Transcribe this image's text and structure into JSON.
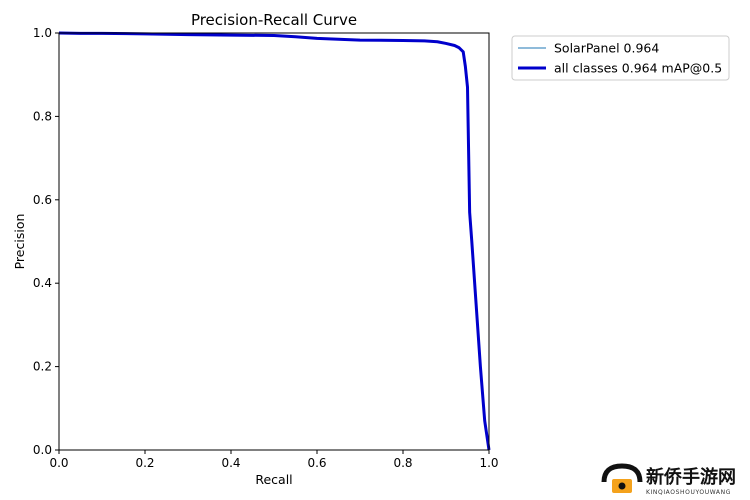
{
  "chart_data": {
    "type": "line",
    "title": "Precision-Recall Curve",
    "xlabel": "Recall",
    "ylabel": "Precision",
    "xlim": [
      0,
      1
    ],
    "ylim": [
      0,
      1
    ],
    "x_ticks": [
      "0.0",
      "0.2",
      "0.4",
      "0.6",
      "0.8",
      "1.0"
    ],
    "y_ticks": [
      "0.0",
      "0.2",
      "0.4",
      "0.6",
      "0.8",
      "1.0"
    ],
    "grid": false,
    "legend_position": "outside-top-right",
    "series": [
      {
        "name": "SolarPanel 0.964",
        "color": "#1f77b4",
        "x": [
          0,
          0.05,
          0.1,
          0.2,
          0.3,
          0.4,
          0.5,
          0.55,
          0.6,
          0.65,
          0.7,
          0.8,
          0.85,
          0.88,
          0.9,
          0.92,
          0.93,
          0.94,
          0.945,
          0.95,
          0.955,
          0.96,
          0.97,
          0.98,
          0.99,
          1.0
        ],
        "y": [
          1.0,
          0.999,
          0.999,
          0.998,
          0.996,
          0.995,
          0.994,
          0.991,
          0.987,
          0.985,
          0.983,
          0.982,
          0.981,
          0.979,
          0.975,
          0.97,
          0.965,
          0.955,
          0.92,
          0.87,
          0.57,
          0.5,
          0.35,
          0.2,
          0.07,
          0.0
        ]
      },
      {
        "name": "all classes 0.964 mAP@0.5",
        "color": "#0000cc",
        "x": [
          0,
          0.05,
          0.1,
          0.2,
          0.3,
          0.4,
          0.5,
          0.55,
          0.6,
          0.65,
          0.7,
          0.8,
          0.85,
          0.88,
          0.9,
          0.92,
          0.93,
          0.94,
          0.945,
          0.95,
          0.955,
          0.96,
          0.97,
          0.98,
          0.99,
          1.0
        ],
        "y": [
          1.0,
          0.999,
          0.999,
          0.998,
          0.996,
          0.995,
          0.994,
          0.991,
          0.987,
          0.985,
          0.983,
          0.982,
          0.981,
          0.979,
          0.975,
          0.97,
          0.965,
          0.955,
          0.92,
          0.87,
          0.57,
          0.5,
          0.35,
          0.2,
          0.07,
          0.0
        ]
      }
    ]
  },
  "watermark": {
    "logo_icon": "house-logo-icon",
    "title": "新侨手游网",
    "subtitle": "KINQIAOSHOUYOUWANG"
  }
}
